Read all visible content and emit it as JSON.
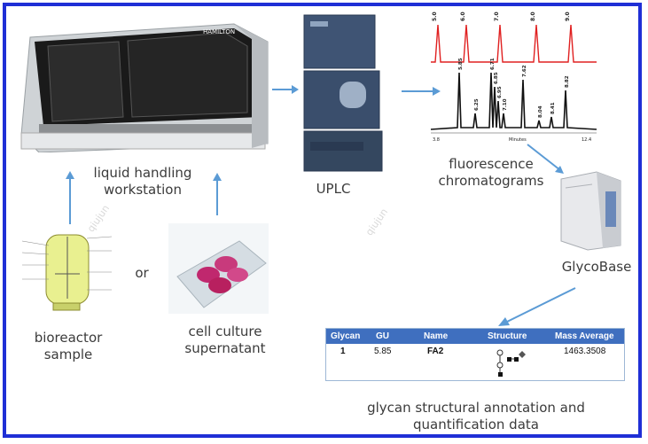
{
  "labels": {
    "liquid_handling": "liquid handling\nworkstation",
    "uplc": "UPLC",
    "fluorescence": "fluorescence\nchromatograms",
    "glycobase": "GlycoBase",
    "or": "or",
    "bioreactor": "bioreactor\nsample",
    "cell_culture": "cell culture\nsupernatant",
    "annotation": "glycan structural annotation and\nquantification data",
    "hamilton_brand": "HAMILTON",
    "watermark": "qiujun"
  },
  "chromatogram": {
    "red_peaks": [
      "5.0",
      "6.0",
      "7.0",
      "8.0",
      "9.0"
    ],
    "black_peaks": [
      "5.85",
      "6.25",
      "6.71",
      "6.85",
      "6.95",
      "7.10",
      "7.62",
      "8.04",
      "8.41",
      "8.82"
    ],
    "x_start": "3.8",
    "x_end": "12.4",
    "x_label": "Minutes"
  },
  "table": {
    "headers": [
      "Glycan",
      "GU",
      "Name",
      "Structure",
      "Mass Average"
    ],
    "row": [
      "1",
      "5.85",
      "FA2",
      "",
      "1463.3508"
    ]
  },
  "colors": {
    "border": "#1f2fd6",
    "arrow": "#5b9bd5",
    "red_trace": "#e02020",
    "table_header": "#3f6fbf"
  }
}
